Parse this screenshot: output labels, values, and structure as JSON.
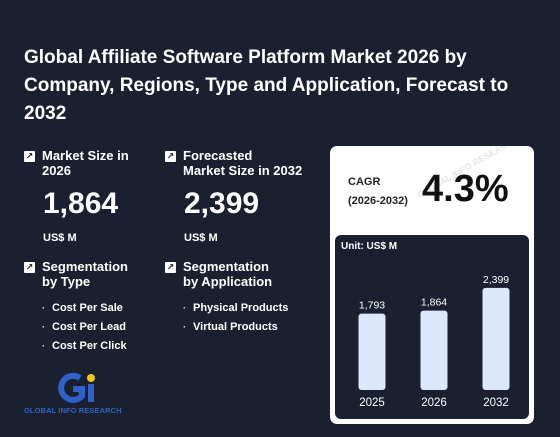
{
  "title": "Global Affiliate Software Platform Market 2026 by Company, Regions, Type and Application, Forecast to 2032",
  "market_size": {
    "label_line1": "Market Size in",
    "label_line2": "2026",
    "value": "1,864",
    "unit": "US$ M"
  },
  "forecast": {
    "label_line1": "Forecasted",
    "label_line2": "Market Size in 2032",
    "value": "2,399",
    "unit": "US$ M"
  },
  "segmentation_type": {
    "label_line1": "Segmentation",
    "label_line2": "by Type",
    "items": [
      "Cost Per Sale",
      "Cost Per Lead",
      "Cost Per Click"
    ]
  },
  "segmentation_application": {
    "label_line1": "Segmentation",
    "label_line2": "by Application",
    "items": [
      "Physical Products",
      "Virtual Products"
    ]
  },
  "cagr": {
    "label_line1": "CAGR",
    "label_line2": "(2026-2032)",
    "value": "4.3%"
  },
  "logo": {
    "text": "GLOBAL INFO RESEARCH",
    "accent": "#2e62c9",
    "accent2": "#f0c419"
  },
  "watermark": "GLOBAL INFO RESEARCH",
  "colors": {
    "background": "#1b2030",
    "bar": "#dbe8fb"
  },
  "chart_data": {
    "type": "bar",
    "unit_label": "Unit: US$ M",
    "categories": [
      "2025",
      "2026",
      "2032"
    ],
    "values": [
      1793,
      1864,
      2399
    ],
    "data_labels": [
      "1,793",
      "1,864",
      "2,399"
    ],
    "ylim": [
      0,
      2700
    ]
  }
}
